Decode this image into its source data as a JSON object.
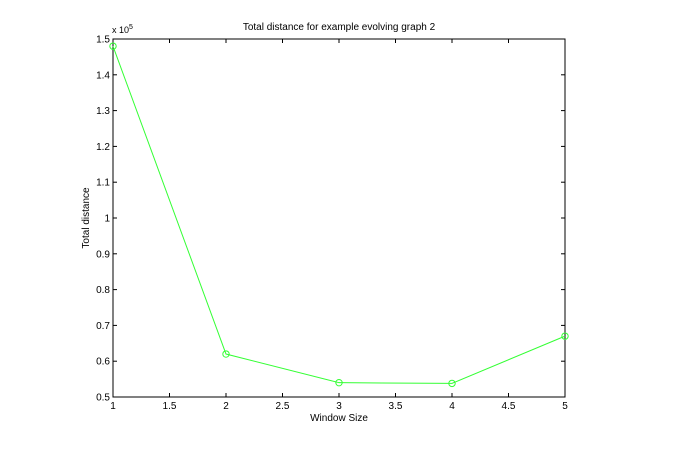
{
  "chart_data": {
    "type": "line",
    "title": "Total distance for example evolving graph 2",
    "xlabel": "Window Size",
    "ylabel": "Total distance",
    "y_multiplier": {
      "base": "x 10",
      "exponent": "5"
    },
    "xlim": [
      1,
      5
    ],
    "ylim": [
      0.5,
      1.5
    ],
    "xticks": [
      1,
      1.5,
      2,
      2.5,
      3,
      3.5,
      4,
      4.5,
      5
    ],
    "xtick_labels": [
      "1",
      "1.5",
      "2",
      "2.5",
      "3",
      "3.5",
      "4",
      "4.5",
      "5"
    ],
    "yticks": [
      0.5,
      0.6,
      0.7,
      0.8,
      0.9,
      1,
      1.1,
      1.2,
      1.3,
      1.4,
      1.5
    ],
    "ytick_labels": [
      "0.5",
      "0.6",
      "0.7",
      "0.8",
      "0.9",
      "1",
      "1.1",
      "1.2",
      "1.3",
      "1.4",
      "1.5"
    ],
    "grid": false,
    "series": [
      {
        "color": "#33ff33",
        "marker": "circle",
        "x": [
          1,
          2,
          3,
          4,
          5
        ],
        "y": [
          1.48,
          0.62,
          0.54,
          0.538,
          0.67
        ]
      }
    ]
  }
}
